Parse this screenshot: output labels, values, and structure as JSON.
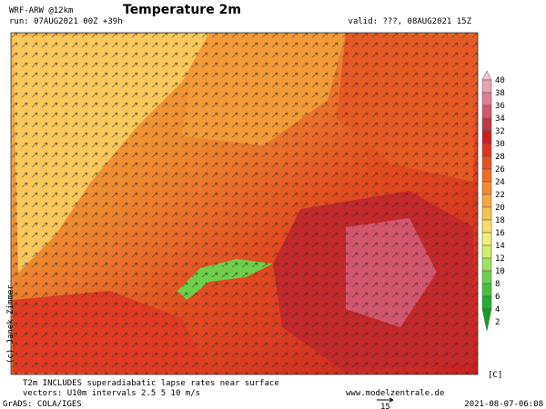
{
  "header": {
    "model": "WRF-ARW @12km",
    "run": "run: 07AUG2021 00Z +39h",
    "title": "Temperature 2m",
    "valid": "valid: ???, 08AUG2021 15Z"
  },
  "colorbar": {
    "labels": [
      40,
      38,
      36,
      34,
      32,
      30,
      28,
      26,
      24,
      22,
      20,
      18,
      16,
      14,
      12,
      10,
      8,
      6,
      4,
      2
    ],
    "colors": [
      "#f2c6d0",
      "#e9a3b4",
      "#e07c94",
      "#d45670",
      "#c23548",
      "#c81e1e",
      "#dd3520",
      "#e85020",
      "#f06c22",
      "#f48a30",
      "#f8a640",
      "#f9c352",
      "#f8dd68",
      "#eef07a",
      "#cdef6c",
      "#9fe05c",
      "#6fcf4c",
      "#44bf3c",
      "#22ae2e",
      "#119e22"
    ],
    "unit": "[C]"
  },
  "credit": "(c) Janek Zimmer",
  "footer": {
    "note": "T2m INCLUDES superadiabatic lapse rates near surface",
    "vectors": "vectors: U10m intervals 2.5 5 10 m/s",
    "site": "www.modelzentrale.de",
    "reference_arrow": "15",
    "grads": "GrADS: COLA/IGES",
    "stamp": "2021-08-07-06:08"
  }
}
